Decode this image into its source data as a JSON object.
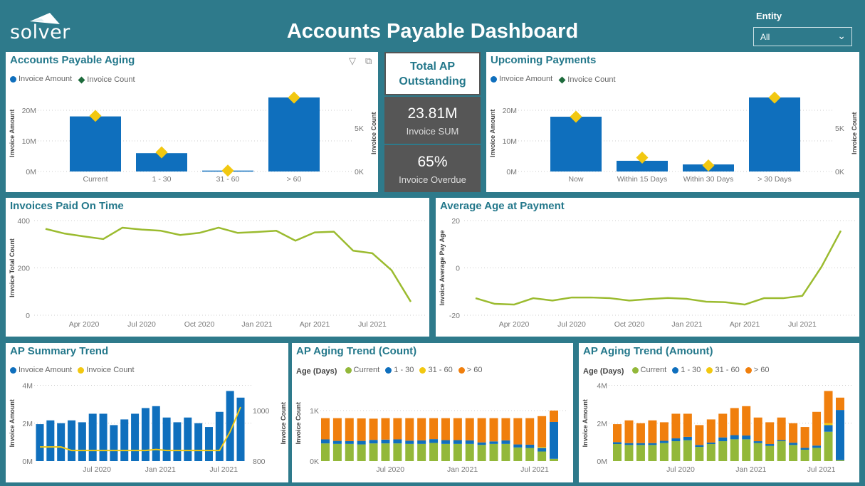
{
  "header": {
    "logo": "solver",
    "title": "Accounts Payable Dashboard",
    "entity_label": "Entity",
    "entity_value": "All"
  },
  "colors": {
    "background": "#2e7a8b",
    "amount": "#0f6fbd",
    "count_marker": "#f2c811",
    "line": "#9bbb2f",
    "current": "#93b83a",
    "d1_30": "#0f6fbd",
    "d31_60": "#f2c811",
    "d60": "#f07f0d"
  },
  "kpi": {
    "title": "Total AP Outstanding",
    "sum_value": "23.81M",
    "sum_label": "Invoice SUM",
    "overdue_value": "65%",
    "overdue_label": "Invoice Overdue"
  },
  "panels": {
    "aging": {
      "title": "Accounts Payable Aging",
      "legend": [
        "Invoice Amount",
        "Invoice Count"
      ],
      "icons": [
        "filter-icon",
        "focus-mode-icon"
      ]
    },
    "upcoming": {
      "title": "Upcoming Payments",
      "legend": [
        "Invoice Amount",
        "Invoice Count"
      ]
    },
    "paid": {
      "title": "Invoices Paid On Time"
    },
    "avgage": {
      "title": "Average Age at Payment"
    },
    "summary": {
      "title": "AP Summary Trend",
      "legend": [
        "Invoice Amount",
        "Invoice Count"
      ]
    },
    "agecount": {
      "title": "AP Aging Trend (Count)",
      "legend_title": "Age (Days)",
      "legend": [
        "Current",
        "1 - 30",
        "31 - 60",
        "> 60"
      ]
    },
    "ageamount": {
      "title": "AP Aging Trend (Amount)",
      "legend_title": "Age (Days)",
      "legend": [
        "Current",
        "1 - 30",
        "31 - 60",
        "> 60"
      ]
    }
  },
  "chart_data": [
    {
      "type": "bar+scatter",
      "title": "Accounts Payable Aging",
      "categories": [
        "Current",
        "1 - 30",
        "31 - 60",
        "> 60"
      ],
      "series": [
        {
          "name": "Invoice Amount",
          "values": [
            18.0,
            6.0,
            0.3,
            24.2
          ]
        },
        {
          "name": "Invoice Count",
          "values": [
            6400,
            2200,
            100,
            8500
          ]
        }
      ],
      "ylabel": "Invoice Amount",
      "y2label": "Invoice Count",
      "ylim": [
        0,
        25
      ],
      "y2lim": [
        0,
        8800
      ],
      "yticks": [
        {
          "value": 0,
          "label": "0M"
        },
        {
          "value": 10,
          "label": "10M"
        },
        {
          "value": 20,
          "label": "20M"
        }
      ],
      "y2ticks": [
        {
          "value": 0,
          "label": "0K"
        },
        {
          "value": 5000,
          "label": "5K"
        }
      ]
    },
    {
      "type": "bar+scatter",
      "title": "Upcoming Payments",
      "categories": [
        "Now",
        "Within 15 Days",
        "Within 30 Days",
        "> 30 Days"
      ],
      "series": [
        {
          "name": "Invoice Amount",
          "values": [
            17.9,
            3.5,
            2.3,
            24.2
          ]
        },
        {
          "name": "Invoice Count",
          "values": [
            6300,
            1600,
            700,
            8500
          ]
        }
      ],
      "ylabel": "Invoice Amount",
      "y2label": "Invoice Count",
      "ylim": [
        0,
        25
      ],
      "y2lim": [
        0,
        8800
      ],
      "yticks": [
        {
          "value": 0,
          "label": "0M"
        },
        {
          "value": 10,
          "label": "10M"
        },
        {
          "value": 20,
          "label": "20M"
        }
      ],
      "y2ticks": [
        {
          "value": 0,
          "label": "0K"
        },
        {
          "value": 5000,
          "label": "5K"
        }
      ]
    },
    {
      "type": "line",
      "title": "Invoices Paid On Time",
      "ylabel": "Invoice Total Count",
      "ylim": [
        0,
        400
      ],
      "x": [
        "2020-02",
        "2020-03",
        "2020-04",
        "2020-05",
        "2020-06",
        "2020-07",
        "2020-08",
        "2020-09",
        "2020-10",
        "2020-11",
        "2020-12",
        "2021-01",
        "2021-02",
        "2021-03",
        "2021-04",
        "2021-05",
        "2021-06",
        "2021-07",
        "2021-08",
        "2021-09"
      ],
      "values": [
        365,
        345,
        333,
        322,
        370,
        362,
        357,
        339,
        348,
        370,
        348,
        352,
        357,
        315,
        350,
        353,
        273,
        262,
        190,
        57
      ],
      "yticks": [
        {
          "value": 0,
          "label": "0"
        },
        {
          "value": 200,
          "label": "200"
        },
        {
          "value": 400,
          "label": "400"
        }
      ],
      "xticks": [
        {
          "index": 2,
          "label": "Apr 2020"
        },
        {
          "index": 5,
          "label": "Jul 2020"
        },
        {
          "index": 8,
          "label": "Oct 2020"
        },
        {
          "index": 11,
          "label": "Jan 2021"
        },
        {
          "index": 14,
          "label": "Apr 2021"
        },
        {
          "index": 17,
          "label": "Jul 2021"
        }
      ]
    },
    {
      "type": "line",
      "title": "Average Age at Payment",
      "ylabel": "Invoice Average Pay Age",
      "ylim": [
        -20,
        20
      ],
      "x": [
        "2020-02",
        "2020-03",
        "2020-04",
        "2020-05",
        "2020-06",
        "2020-07",
        "2020-08",
        "2020-09",
        "2020-10",
        "2020-11",
        "2020-12",
        "2021-01",
        "2021-02",
        "2021-03",
        "2021-04",
        "2021-05",
        "2021-06",
        "2021-07",
        "2021-08",
        "2021-09"
      ],
      "values": [
        -12.8,
        -15.2,
        -15.5,
        -12.8,
        -13.8,
        -12.5,
        -12.5,
        -12.8,
        -13.8,
        -13.2,
        -12.7,
        -13.1,
        -14.3,
        -14.5,
        -15.5,
        -12.8,
        -12.8,
        -11.8,
        0.5,
        15.7
      ],
      "yticks": [
        {
          "value": -20,
          "label": "-20"
        },
        {
          "value": 0,
          "label": "0"
        },
        {
          "value": 20,
          "label": "20"
        }
      ],
      "xticks": [
        {
          "index": 2,
          "label": "Apr 2020"
        },
        {
          "index": 5,
          "label": "Jul 2020"
        },
        {
          "index": 8,
          "label": "Oct 2020"
        },
        {
          "index": 11,
          "label": "Jan 2021"
        },
        {
          "index": 14,
          "label": "Apr 2021"
        },
        {
          "index": 17,
          "label": "Jul 2021"
        }
      ]
    },
    {
      "type": "bar+line",
      "title": "AP Summary Trend",
      "ylabel": "Invoice Amount",
      "y2label": "Invoice Count",
      "ylim": [
        0,
        4
      ],
      "y2lim": [
        800,
        1100
      ],
      "x": [
        "2020-02",
        "2020-03",
        "2020-04",
        "2020-05",
        "2020-06",
        "2020-07",
        "2020-08",
        "2020-09",
        "2020-10",
        "2020-11",
        "2020-12",
        "2021-01",
        "2021-02",
        "2021-03",
        "2021-04",
        "2021-05",
        "2021-06",
        "2021-07",
        "2021-08",
        "2021-09"
      ],
      "series": [
        {
          "name": "Invoice Amount",
          "values": [
            1.95,
            2.15,
            2.0,
            2.15,
            2.05,
            2.5,
            2.5,
            1.9,
            2.2,
            2.5,
            2.8,
            2.9,
            2.3,
            2.05,
            2.3,
            2.0,
            1.8,
            2.6,
            3.7,
            3.35
          ]
        },
        {
          "name": "Invoice Count",
          "values": [
            856,
            856,
            856,
            842,
            842,
            842,
            842,
            842,
            842,
            842,
            842,
            846,
            842,
            842,
            842,
            842,
            842,
            842,
            916,
            1014
          ]
        }
      ],
      "yticks": [
        {
          "value": 0,
          "label": "0M"
        },
        {
          "value": 2,
          "label": "2M"
        },
        {
          "value": 4,
          "label": "4M"
        }
      ],
      "y2ticks": [
        {
          "value": 800,
          "label": "800"
        },
        {
          "value": 1000,
          "label": "1000"
        }
      ],
      "xticks": [
        {
          "index": 5,
          "label": "Jul 2020"
        },
        {
          "index": 11,
          "label": "Jan 2021"
        },
        {
          "index": 17,
          "label": "Jul 2021"
        }
      ]
    },
    {
      "type": "stacked-bar",
      "title": "AP Aging Trend (Count)",
      "ylabel": "Invoice Count",
      "ylim": [
        0,
        1500
      ],
      "x": [
        "2020-02",
        "2020-03",
        "2020-04",
        "2020-05",
        "2020-06",
        "2020-07",
        "2020-08",
        "2020-09",
        "2020-10",
        "2020-11",
        "2020-12",
        "2021-01",
        "2021-02",
        "2021-03",
        "2021-04",
        "2021-05",
        "2021-06",
        "2021-07",
        "2021-08",
        "2021-09"
      ],
      "series": [
        {
          "name": "Current",
          "values": [
            350,
            340,
            340,
            330,
            350,
            350,
            350,
            340,
            340,
            360,
            340,
            340,
            340,
            320,
            340,
            340,
            270,
            260,
            190,
            45
          ]
        },
        {
          "name": "1 - 30",
          "values": [
            80,
            60,
            55,
            70,
            70,
            75,
            80,
            65,
            70,
            75,
            75,
            75,
            70,
            50,
            50,
            70,
            60,
            65,
            70,
            730
          ]
        },
        {
          "name": "31 - 60",
          "values": [
            0,
            0,
            0,
            0,
            0,
            0,
            0,
            0,
            0,
            0,
            0,
            0,
            0,
            0,
            0,
            0,
            0,
            0,
            20,
            0
          ]
        },
        {
          "name": "> 60",
          "values": [
            420,
            450,
            455,
            445,
            420,
            425,
            420,
            445,
            440,
            415,
            435,
            435,
            440,
            480,
            460,
            440,
            520,
            525,
            610,
            225
          ]
        }
      ],
      "yticks": [
        {
          "value": 0,
          "label": "0K"
        },
        {
          "value": 1000,
          "label": "1K"
        }
      ],
      "xticks": [
        {
          "index": 5,
          "label": "Jul 2020"
        },
        {
          "index": 11,
          "label": "Jan 2021"
        },
        {
          "index": 17,
          "label": "Jul 2021"
        }
      ]
    },
    {
      "type": "stacked-bar",
      "title": "AP Aging Trend (Amount)",
      "ylabel": "Invoice Amount",
      "ylim": [
        0,
        4
      ],
      "x": [
        "2020-02",
        "2020-03",
        "2020-04",
        "2020-05",
        "2020-06",
        "2020-07",
        "2020-08",
        "2020-09",
        "2020-10",
        "2020-11",
        "2020-12",
        "2021-01",
        "2021-02",
        "2021-03",
        "2021-04",
        "2021-05",
        "2021-06",
        "2021-07",
        "2021-08",
        "2021-09"
      ],
      "series": [
        {
          "name": "Current",
          "values": [
            0.9,
            0.85,
            0.85,
            0.85,
            0.95,
            1.05,
            1.1,
            0.75,
            0.9,
            1.05,
            1.15,
            1.15,
            0.95,
            0.8,
            1.05,
            0.85,
            0.6,
            0.7,
            1.55,
            0.05
          ]
        },
        {
          "name": "1 - 30",
          "values": [
            0.1,
            0.1,
            0.1,
            0.1,
            0.12,
            0.15,
            0.18,
            0.1,
            0.08,
            0.2,
            0.22,
            0.2,
            0.1,
            0.1,
            0.06,
            0.12,
            0.1,
            0.12,
            0.35,
            2.65
          ]
        },
        {
          "name": "31 - 60",
          "values": [
            0,
            0,
            0,
            0,
            0,
            0,
            0,
            0,
            0,
            0,
            0,
            0,
            0,
            0,
            0,
            0,
            0,
            0,
            0.1,
            0
          ]
        },
        {
          "name": "> 60",
          "values": [
            0.95,
            1.2,
            1.05,
            1.2,
            0.98,
            1.3,
            1.22,
            1.05,
            1.22,
            1.25,
            1.43,
            1.55,
            1.25,
            1.15,
            1.19,
            1.03,
            1.1,
            1.78,
            1.7,
            0.65
          ]
        }
      ],
      "yticks": [
        {
          "value": 0,
          "label": "0M"
        },
        {
          "value": 2,
          "label": "2M"
        },
        {
          "value": 4,
          "label": "4M"
        }
      ],
      "xticks": [
        {
          "index": 5,
          "label": "Jul 2020"
        },
        {
          "index": 11,
          "label": "Jan 2021"
        },
        {
          "index": 17,
          "label": "Jul 2021"
        }
      ]
    }
  ]
}
